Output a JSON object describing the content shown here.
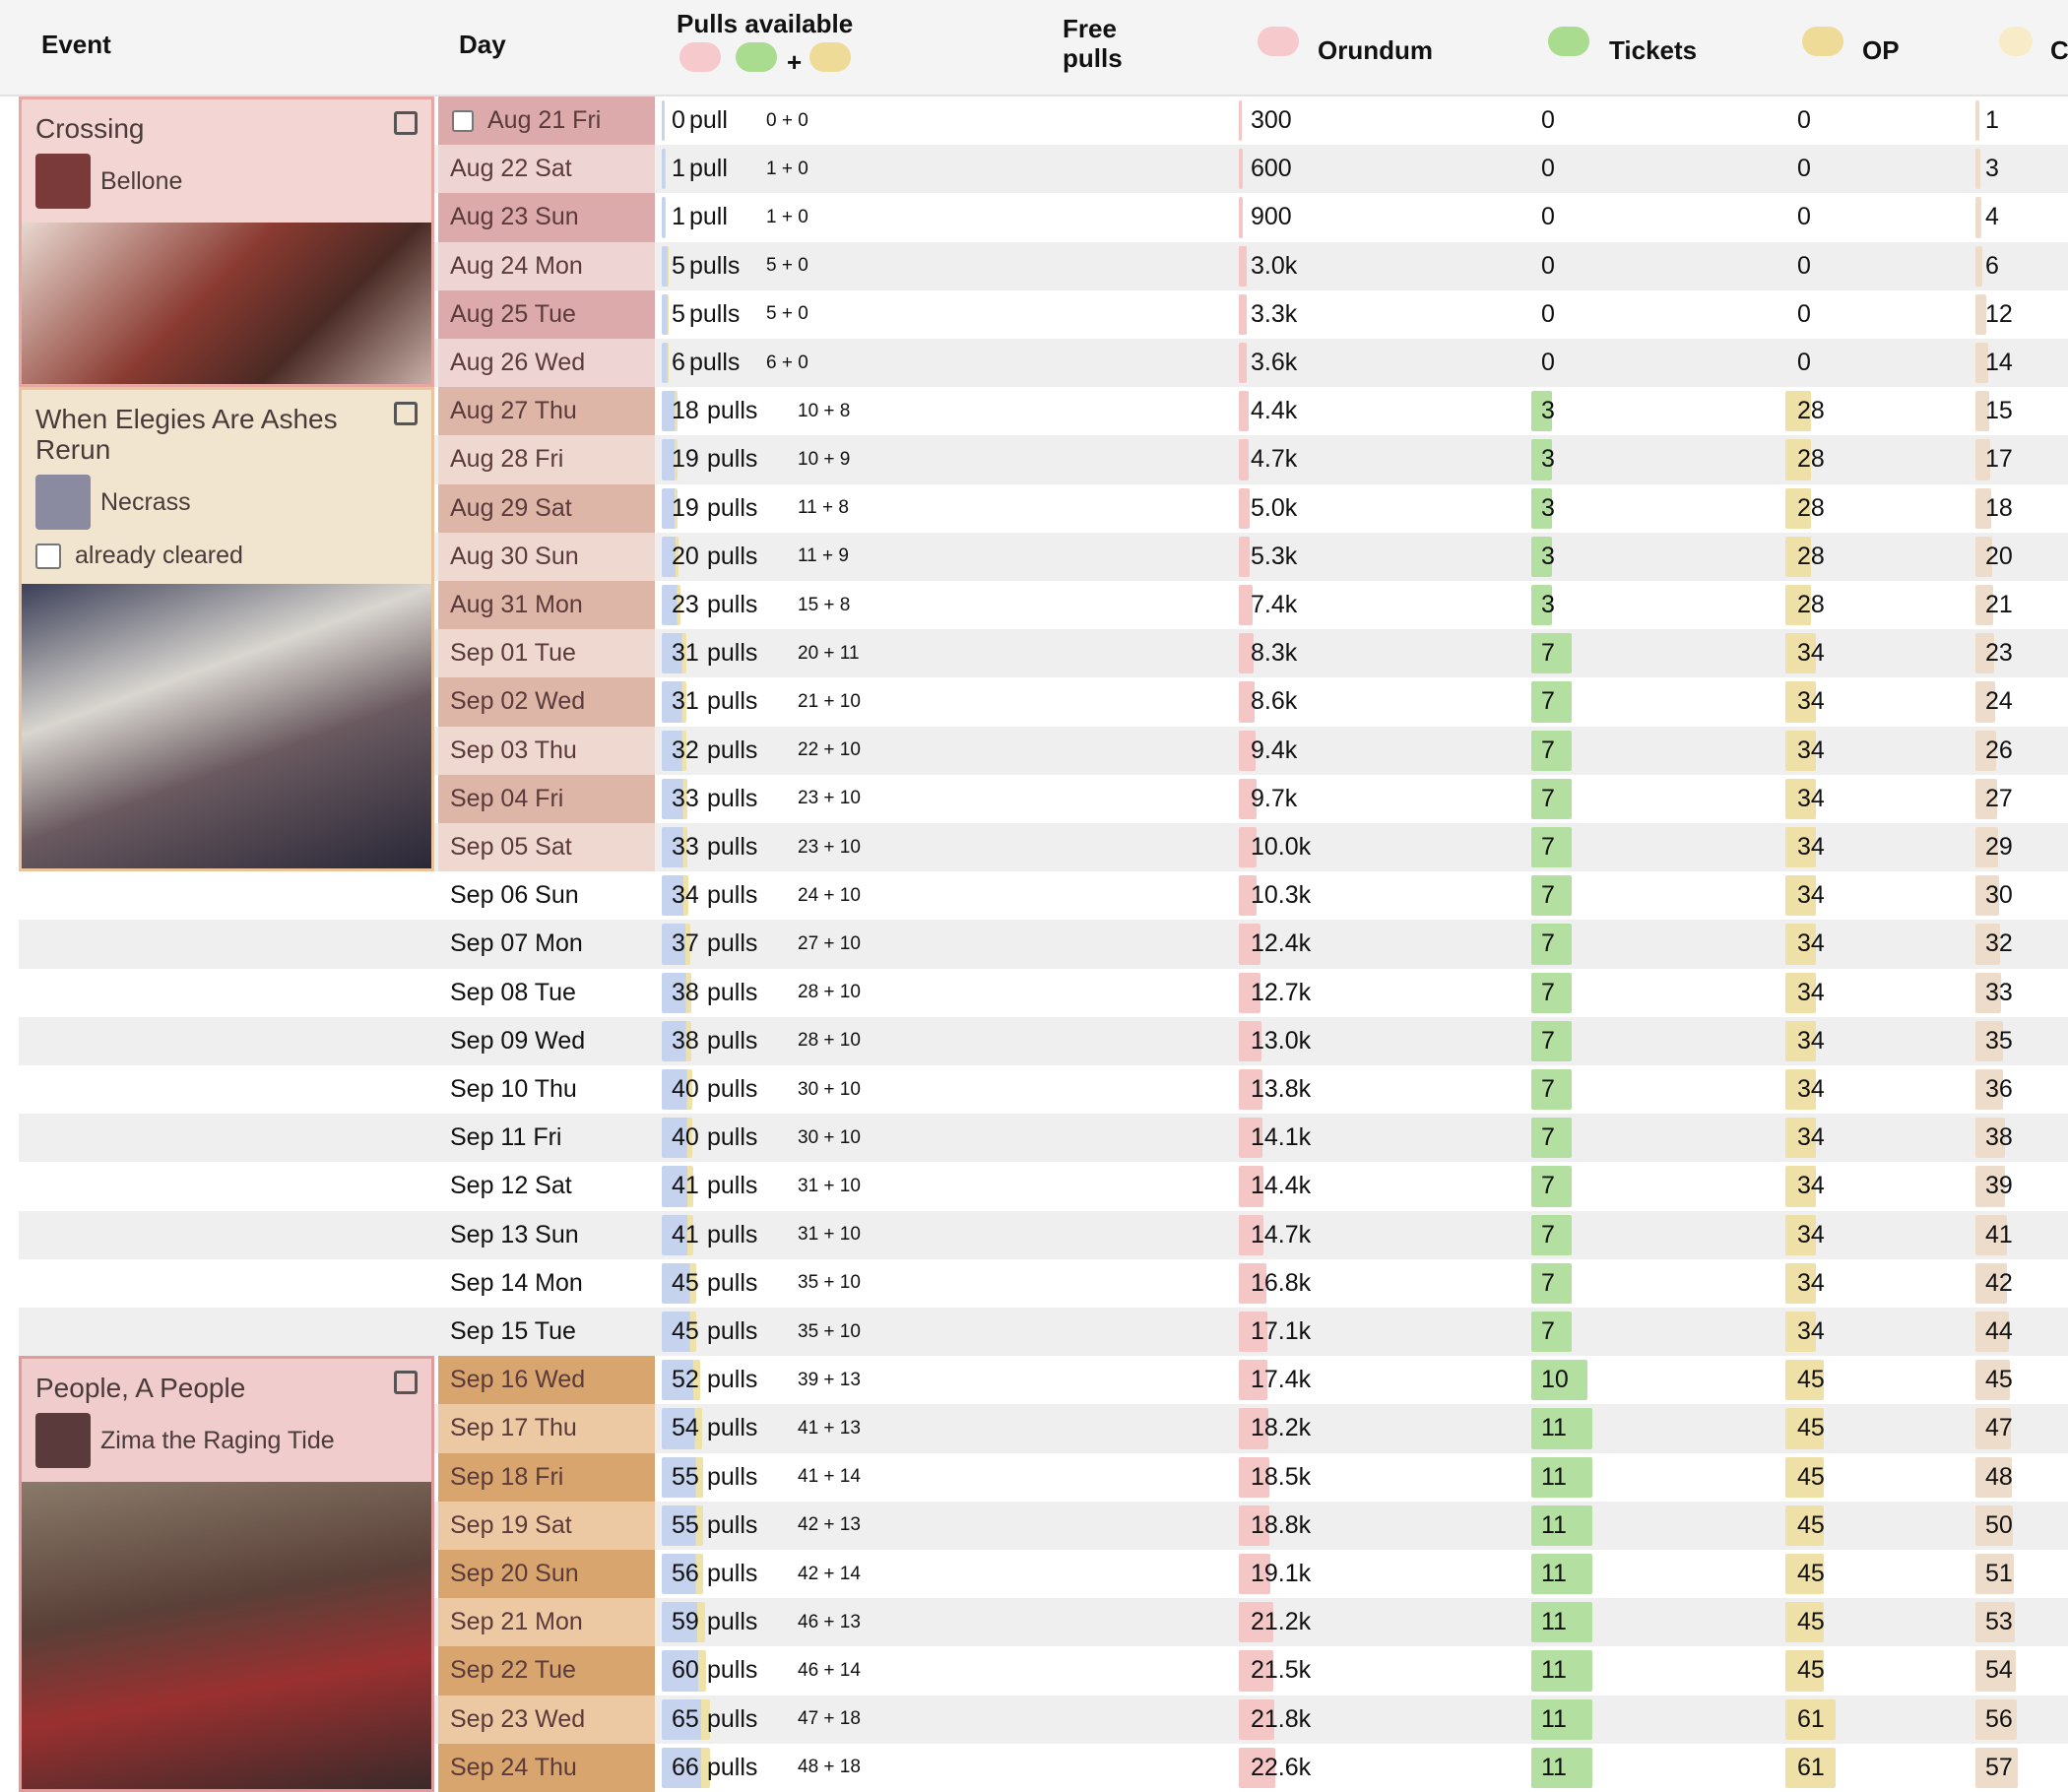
{
  "header": {
    "event": "Event",
    "day": "Day",
    "pulls_available": "Pulls available",
    "plus": "+",
    "free_pulls": "Free pulls",
    "orundum": "Orundum",
    "tickets": "Tickets",
    "op": "OP",
    "last": "C"
  },
  "groups": [
    {
      "event": {
        "title": "Crossing",
        "operator": "Bellone"
      },
      "rows": [
        {
          "day": "Aug 21 Fri",
          "pulls": 0,
          "unit": "pull",
          "breakdown": "0 + 0",
          "orundum": "300",
          "tickets": 0,
          "op": 0,
          "last": 1
        },
        {
          "day": "Aug 22 Sat",
          "pulls": 1,
          "unit": "pull",
          "breakdown": "1 + 0",
          "orundum": "600",
          "tickets": 0,
          "op": 0,
          "last": 3
        },
        {
          "day": "Aug 23 Sun",
          "pulls": 1,
          "unit": "pull",
          "breakdown": "1 + 0",
          "orundum": "900",
          "tickets": 0,
          "op": 0,
          "last": 4
        },
        {
          "day": "Aug 24 Mon",
          "pulls": 5,
          "unit": "pulls",
          "breakdown": "5 + 0",
          "orundum": "3.0k",
          "tickets": 0,
          "op": 0,
          "last": 6
        },
        {
          "day": "Aug 25 Tue",
          "pulls": 5,
          "unit": "pulls",
          "breakdown": "5 + 0",
          "orundum": "3.3k",
          "tickets": 0,
          "op": 0,
          "last": 12
        },
        {
          "day": "Aug 26 Wed",
          "pulls": 6,
          "unit": "pulls",
          "breakdown": "6 + 0",
          "orundum": "3.6k",
          "tickets": 0,
          "op": 0,
          "last": 14
        }
      ]
    },
    {
      "event": {
        "title": "When Elegies Are Ashes Rerun",
        "operator": "Necrass",
        "checkbox": "already cleared"
      },
      "rows": [
        {
          "day": "Aug 27 Thu",
          "pulls": 18,
          "unit": "pulls",
          "breakdown": "10 + 8",
          "orundum": "4.4k",
          "tickets": 3,
          "op": 28,
          "last": 15
        },
        {
          "day": "Aug 28 Fri",
          "pulls": 19,
          "unit": "pulls",
          "breakdown": "10 + 9",
          "orundum": "4.7k",
          "tickets": 3,
          "op": 28,
          "last": 17
        },
        {
          "day": "Aug 29 Sat",
          "pulls": 19,
          "unit": "pulls",
          "breakdown": "11 + 8",
          "orundum": "5.0k",
          "tickets": 3,
          "op": 28,
          "last": 18
        },
        {
          "day": "Aug 30 Sun",
          "pulls": 20,
          "unit": "pulls",
          "breakdown": "11 + 9",
          "orundum": "5.3k",
          "tickets": 3,
          "op": 28,
          "last": 20
        },
        {
          "day": "Aug 31 Mon",
          "pulls": 23,
          "unit": "pulls",
          "breakdown": "15 + 8",
          "orundum": "7.4k",
          "tickets": 3,
          "op": 28,
          "last": 21
        },
        {
          "day": "Sep 01 Tue",
          "pulls": 31,
          "unit": "pulls",
          "breakdown": "20 + 11",
          "orundum": "8.3k",
          "tickets": 7,
          "op": 34,
          "last": 23
        },
        {
          "day": "Sep 02 Wed",
          "pulls": 31,
          "unit": "pulls",
          "breakdown": "21 + 10",
          "orundum": "8.6k",
          "tickets": 7,
          "op": 34,
          "last": 24
        },
        {
          "day": "Sep 03 Thu",
          "pulls": 32,
          "unit": "pulls",
          "breakdown": "22 + 10",
          "orundum": "9.4k",
          "tickets": 7,
          "op": 34,
          "last": 26
        },
        {
          "day": "Sep 04 Fri",
          "pulls": 33,
          "unit": "pulls",
          "breakdown": "23 + 10",
          "orundum": "9.7k",
          "tickets": 7,
          "op": 34,
          "last": 27
        },
        {
          "day": "Sep 05 Sat",
          "pulls": 33,
          "unit": "pulls",
          "breakdown": "23 + 10",
          "orundum": "10.0k",
          "tickets": 7,
          "op": 34,
          "last": 29
        }
      ]
    },
    {
      "rows": [
        {
          "day": "Sep 06 Sun",
          "pulls": 34,
          "unit": "pulls",
          "breakdown": "24 + 10",
          "orundum": "10.3k",
          "tickets": 7,
          "op": 34,
          "last": 30
        },
        {
          "day": "Sep 07 Mon",
          "pulls": 37,
          "unit": "pulls",
          "breakdown": "27 + 10",
          "orundum": "12.4k",
          "tickets": 7,
          "op": 34,
          "last": 32
        },
        {
          "day": "Sep 08 Tue",
          "pulls": 38,
          "unit": "pulls",
          "breakdown": "28 + 10",
          "orundum": "12.7k",
          "tickets": 7,
          "op": 34,
          "last": 33
        },
        {
          "day": "Sep 09 Wed",
          "pulls": 38,
          "unit": "pulls",
          "breakdown": "28 + 10",
          "orundum": "13.0k",
          "tickets": 7,
          "op": 34,
          "last": 35
        },
        {
          "day": "Sep 10 Thu",
          "pulls": 40,
          "unit": "pulls",
          "breakdown": "30 + 10",
          "orundum": "13.8k",
          "tickets": 7,
          "op": 34,
          "last": 36
        },
        {
          "day": "Sep 11 Fri",
          "pulls": 40,
          "unit": "pulls",
          "breakdown": "30 + 10",
          "orundum": "14.1k",
          "tickets": 7,
          "op": 34,
          "last": 38
        },
        {
          "day": "Sep 12 Sat",
          "pulls": 41,
          "unit": "pulls",
          "breakdown": "31 + 10",
          "orundum": "14.4k",
          "tickets": 7,
          "op": 34,
          "last": 39
        },
        {
          "day": "Sep 13 Sun",
          "pulls": 41,
          "unit": "pulls",
          "breakdown": "31 + 10",
          "orundum": "14.7k",
          "tickets": 7,
          "op": 34,
          "last": 41
        },
        {
          "day": "Sep 14 Mon",
          "pulls": 45,
          "unit": "pulls",
          "breakdown": "35 + 10",
          "orundum": "16.8k",
          "tickets": 7,
          "op": 34,
          "last": 42
        },
        {
          "day": "Sep 15 Tue",
          "pulls": 45,
          "unit": "pulls",
          "breakdown": "35 + 10",
          "orundum": "17.1k",
          "tickets": 7,
          "op": 34,
          "last": 44
        }
      ]
    },
    {
      "event": {
        "title": "People, A People",
        "operator": "Zima the Raging Tide"
      },
      "rows": [
        {
          "day": "Sep 16 Wed",
          "pulls": 52,
          "unit": "pulls",
          "breakdown": "39 + 13",
          "orundum": "17.4k",
          "tickets": 10,
          "op": 45,
          "last": 45
        },
        {
          "day": "Sep 17 Thu",
          "pulls": 54,
          "unit": "pulls",
          "breakdown": "41 + 13",
          "orundum": "18.2k",
          "tickets": 11,
          "op": 45,
          "last": 47
        },
        {
          "day": "Sep 18 Fri",
          "pulls": 55,
          "unit": "pulls",
          "breakdown": "41 + 14",
          "orundum": "18.5k",
          "tickets": 11,
          "op": 45,
          "last": 48
        },
        {
          "day": "Sep 19 Sat",
          "pulls": 55,
          "unit": "pulls",
          "breakdown": "42 + 13",
          "orundum": "18.8k",
          "tickets": 11,
          "op": 45,
          "last": 50
        },
        {
          "day": "Sep 20 Sun",
          "pulls": 56,
          "unit": "pulls",
          "breakdown": "42 + 14",
          "orundum": "19.1k",
          "tickets": 11,
          "op": 45,
          "last": 51
        },
        {
          "day": "Sep 21 Mon",
          "pulls": 59,
          "unit": "pulls",
          "breakdown": "46 + 13",
          "orundum": "21.2k",
          "tickets": 11,
          "op": 45,
          "last": 53
        },
        {
          "day": "Sep 22 Tue",
          "pulls": 60,
          "unit": "pulls",
          "breakdown": "46 + 14",
          "orundum": "21.5k",
          "tickets": 11,
          "op": 45,
          "last": 54
        },
        {
          "day": "Sep 23 Wed",
          "pulls": 65,
          "unit": "pulls",
          "breakdown": "47 + 18",
          "orundum": "21.8k",
          "tickets": 11,
          "op": 61,
          "last": 56
        },
        {
          "day": "Sep 24 Thu",
          "pulls": 66,
          "unit": "pulls",
          "breakdown": "48 + 18",
          "orundum": "22.6k",
          "tickets": 11,
          "op": 61,
          "last": 57
        }
      ]
    }
  ]
}
